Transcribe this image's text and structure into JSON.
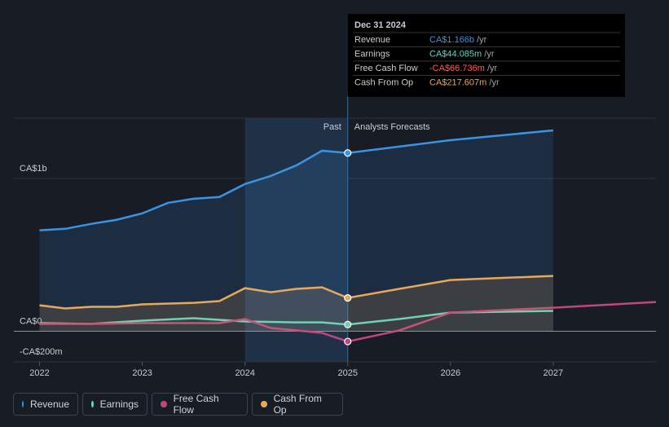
{
  "chart_data": {
    "type": "line",
    "xlim": [
      2021.75,
      2028
    ],
    "xticks": [
      2022,
      2023,
      2024,
      2025,
      2026,
      2027
    ],
    "ylim": [
      -200,
      1394
    ],
    "yticks": [
      {
        "value": 1000,
        "label": "CA$1b"
      },
      {
        "value": 0,
        "label": "CA$0"
      },
      {
        "value": -200,
        "label": "-CA$200m"
      }
    ],
    "past_label": "Past",
    "forecast_label": "Analysts Forecasts",
    "divider_x": 2025,
    "series": [
      {
        "name": "Revenue",
        "color": "#3a93e3",
        "area": true,
        "x": [
          2022,
          2022.25,
          2022.5,
          2022.75,
          2023,
          2023.25,
          2023.5,
          2023.75,
          2024,
          2024.25,
          2024.5,
          2024.75,
          2025,
          2026,
          2027
        ],
        "values": [
          660,
          670,
          702,
          729,
          771,
          840,
          867,
          878,
          963,
          1016,
          1085,
          1181,
          1166,
          1250,
          1314
        ]
      },
      {
        "name": "Earnings",
        "color": "#5fd8c0",
        "area": false,
        "x": [
          2022,
          2022.5,
          2023,
          2023.5,
          2024,
          2024.5,
          2024.75,
          2025,
          2025.5,
          2026,
          2027
        ],
        "values": [
          53,
          48,
          69,
          85,
          64,
          58,
          58,
          44,
          80,
          122,
          133
        ]
      },
      {
        "name": "Free Cash Flow",
        "color": "#c0467e",
        "area": false,
        "x": [
          2022,
          2022.5,
          2023,
          2023.5,
          2023.75,
          2024,
          2024.25,
          2024.5,
          2024.75,
          2025,
          2025.5,
          2026,
          2027,
          2028
        ],
        "values": [
          48,
          48,
          53,
          53,
          53,
          80,
          21,
          5,
          -11,
          -67,
          5,
          122,
          154,
          191
        ]
      },
      {
        "name": "Cash From Op",
        "color": "#e8a85a",
        "area": true,
        "x": [
          2022,
          2022.25,
          2022.5,
          2022.75,
          2023,
          2023.5,
          2023.75,
          2024,
          2024.25,
          2024.5,
          2024.75,
          2025,
          2025.5,
          2026,
          2027
        ],
        "values": [
          170,
          149,
          160,
          160,
          176,
          186,
          197,
          282,
          255,
          277,
          287,
          218,
          277,
          335,
          362
        ]
      }
    ],
    "tooltip": {
      "date": "Dec 31 2024",
      "rows": [
        {
          "label": "Revenue",
          "value": "CA$1.166b",
          "unit": "/yr"
        },
        {
          "label": "Earnings",
          "value": "CA$44.085m",
          "unit": "/yr"
        },
        {
          "label": "Free Cash Flow",
          "value": "-CA$66.736m",
          "unit": "/yr"
        },
        {
          "label": "Cash From Op",
          "value": "CA$217.607m",
          "unit": "/yr"
        }
      ]
    }
  }
}
